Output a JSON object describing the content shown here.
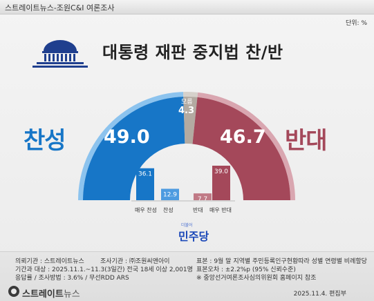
{
  "header": {
    "title": "스트레이트뉴스-조원C&I 여론조사",
    "unit": "단위: %"
  },
  "chart_data": {
    "type": "semicircle-pie-and-bar",
    "title": "대통령 재판 중지법 찬/반",
    "pie": [
      {
        "label": "찬성",
        "value": 49.0,
        "color": "#1776c7"
      },
      {
        "label": "모름",
        "value": 4.3,
        "color": "#b3aaa1"
      },
      {
        "label": "반대",
        "value": 46.7,
        "color": "#a4485a"
      }
    ],
    "bars": [
      {
        "label": "매우 찬성",
        "value": 36.1,
        "color": "#1776c7"
      },
      {
        "label": "찬성",
        "value": 12.9,
        "color": "#4d9be0"
      },
      {
        "label": "반대",
        "value": 7.7,
        "color": "#c07a86"
      },
      {
        "label": "매우 반대",
        "value": 39.0,
        "color": "#a4485a"
      }
    ],
    "big_labels": {
      "left": "찬성",
      "right": "반대"
    },
    "main_values": {
      "left": "49.0",
      "right": "46.7"
    },
    "center_note": "모름",
    "center_value": "4.3"
  },
  "party_logo": {
    "main": "민주당",
    "small": "더불어"
  },
  "footer": {
    "l1a": "의뢰기관 : 스트레이트뉴스",
    "l1b": "조사기관 : ㈜조원씨앤아이",
    "l2": "기간과 대상 : 2025.11.1.~11.3(3일간)   전국 18세 이상  2,001명",
    "l3": "응답률 / 조사방법 : 3.6% / 무선RDD ARS",
    "r1": "표본 : 9월 말 지역별 주민등록인구현황따라 성별 연령별 비례할당",
    "r2": "표본오차 : ±2.2%p (95% 신뢰수준)",
    "r3": "※ 중앙선거여론조사심의위원회 홈페이지 참조",
    "brand_main": "스트레이트",
    "brand_sub": "뉴스",
    "date": "2025.11.4.  편집부"
  }
}
